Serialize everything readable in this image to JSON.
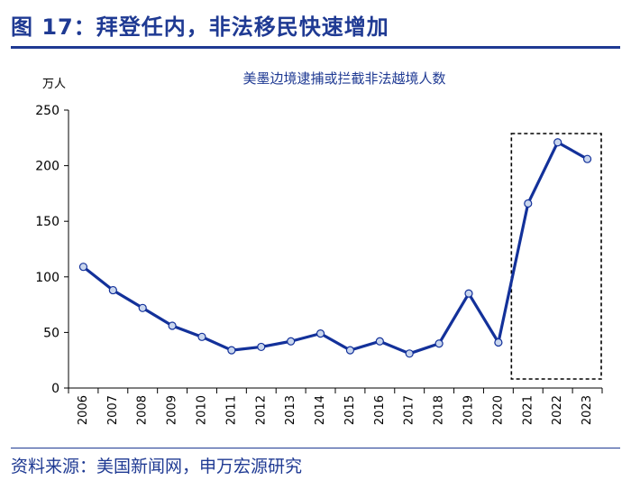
{
  "header": {
    "figure_title": "图 17：拜登任内，非法移民快速增加"
  },
  "footer": {
    "source": "资料来源：美国新闻网，申万宏源研究"
  },
  "colors": {
    "line": "#13319a",
    "marker_fill": "#c9d6ee",
    "title": "#1f3a93"
  },
  "chart_data": {
    "type": "line",
    "title": "美墨边境逮捕或拦截非法越境人数",
    "ylabel": "万人",
    "xlabel": "",
    "ylim": [
      0,
      250
    ],
    "yticks": [
      0,
      50,
      100,
      150,
      200,
      250
    ],
    "grid": false,
    "categories": [
      "2006",
      "2007",
      "2008",
      "2009",
      "2010",
      "2011",
      "2012",
      "2013",
      "2014",
      "2015",
      "2016",
      "2017",
      "2018",
      "2019",
      "2020",
      "2021",
      "2022",
      "2023"
    ],
    "series": [
      {
        "values": [
          109,
          88,
          72,
          56,
          46,
          34,
          37,
          42,
          49,
          34,
          42,
          31,
          40,
          85,
          41,
          166,
          221,
          206
        ]
      }
    ],
    "highlight": {
      "label": "",
      "from": "2021",
      "to": "2023",
      "style": "dashed-box"
    }
  }
}
